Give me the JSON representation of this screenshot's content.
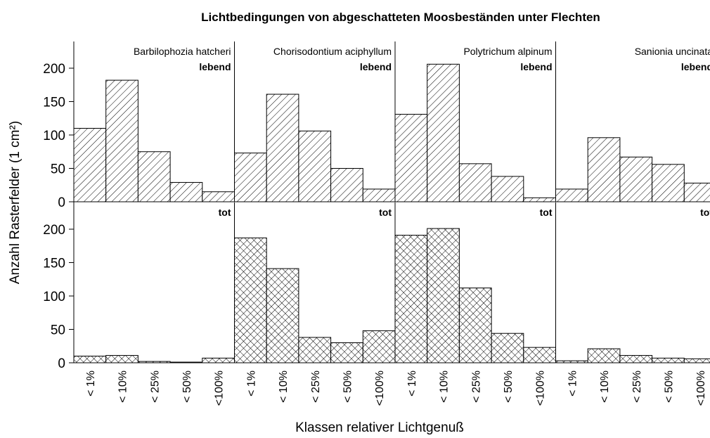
{
  "chart_data": {
    "type": "bar",
    "title": "Lichtbedingungen von abgeschatteten Moosbeständen unter Flechten",
    "x_label": "Klassen relativer Lichtgenuß",
    "y_label": "Anzahl Rasterfelder (1 cm²)",
    "categories": [
      "< 1%",
      "< 10%",
      "< 25%",
      "< 50%",
      "<100%"
    ],
    "ylim": [
      0,
      240
    ],
    "yticks": [
      0,
      50,
      100,
      150,
      200
    ],
    "rows": [
      {
        "label": "lebend",
        "panels": [
          {
            "name": "Barbilophozia hatcheri",
            "values": [
              110,
              182,
              75,
              29,
              15
            ]
          },
          {
            "name": "Chorisodontium aciphyllum",
            "values": [
              73,
              161,
              106,
              50,
              19
            ]
          },
          {
            "name": "Polytrichum alpinum",
            "values": [
              131,
              206,
              57,
              38,
              6
            ]
          },
          {
            "name": "Sanionia uncinata",
            "values": [
              19,
              96,
              67,
              56,
              28
            ]
          }
        ]
      },
      {
        "label": "tot",
        "panels": [
          {
            "values": [
              10,
              11,
              2,
              1,
              7
            ]
          },
          {
            "values": [
              187,
              141,
              38,
              30,
              48
            ]
          },
          {
            "values": [
              191,
              201,
              112,
              44,
              23
            ]
          },
          {
            "values": [
              3,
              21,
              11,
              7,
              6
            ]
          }
        ]
      }
    ]
  }
}
